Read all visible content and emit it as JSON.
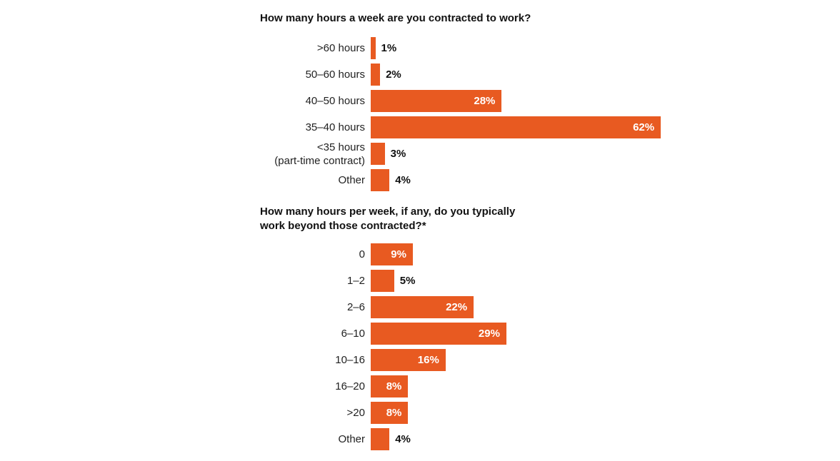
{
  "colors": {
    "bar": "#e85a21",
    "label_inside": "#ffffff",
    "label_outside": "#111111"
  },
  "chart_data": [
    {
      "type": "bar",
      "orientation": "horizontal",
      "title": "How many hours a week are you contracted to work?",
      "categories": [
        ">60 hours",
        "50–60 hours",
        "40–50 hours",
        "35–40 hours",
        "<35 hours\n(part-time contract)",
        "Other"
      ],
      "values": [
        1,
        2,
        28,
        62,
        3,
        4
      ],
      "labels": [
        "1%",
        "2%",
        "28%",
        "62%",
        "3%",
        "4%"
      ],
      "unit": "%"
    },
    {
      "type": "bar",
      "orientation": "horizontal",
      "title": "How many hours per week, if any, do you typically work beyond those contracted?*",
      "categories": [
        "0",
        "1–2",
        "2–6",
        "6–10",
        "10–16",
        "16–20",
        ">20",
        "Other"
      ],
      "values": [
        9,
        5,
        22,
        29,
        16,
        8,
        8,
        4
      ],
      "labels": [
        "9%",
        "5%",
        "22%",
        "29%",
        "16%",
        "8%",
        "8%",
        "4%"
      ],
      "unit": "%"
    }
  ]
}
